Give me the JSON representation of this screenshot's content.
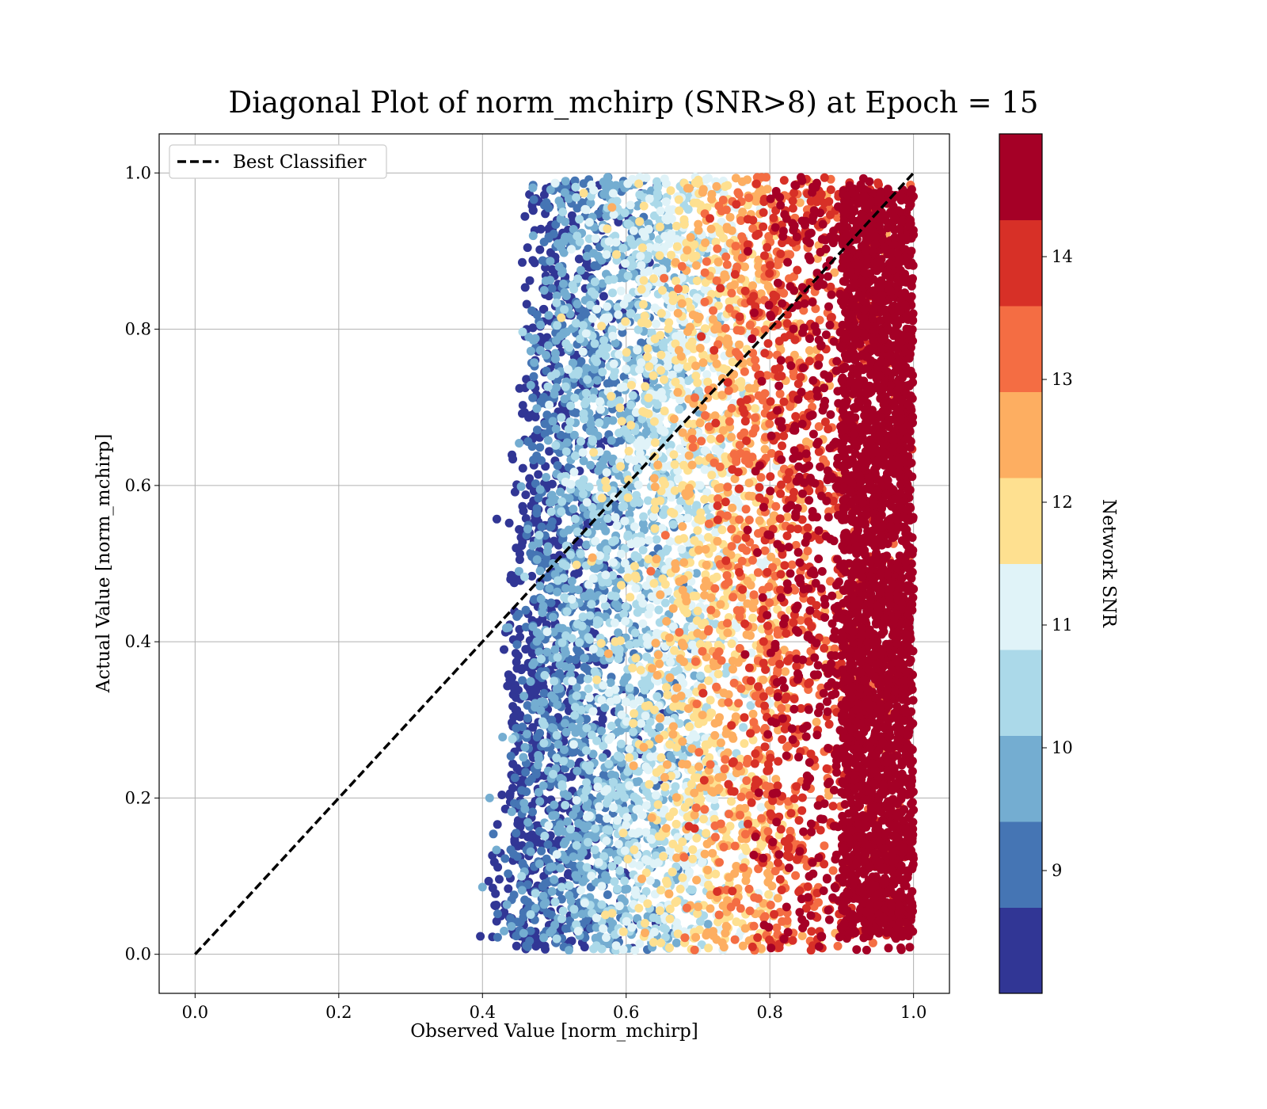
{
  "chart_data": {
    "type": "scatter",
    "title": "Diagonal Plot of norm_mchirp (SNR>8) at Epoch = 15",
    "xlabel": "Observed Value [norm_mchirp]",
    "ylabel": "Actual Value [norm_mchirp]",
    "xlim": [
      -0.05,
      1.05
    ],
    "ylim": [
      -0.05,
      1.05
    ],
    "xticks": [
      "0.0",
      "0.2",
      "0.4",
      "0.6",
      "0.8",
      "1.0"
    ],
    "yticks": [
      "0.0",
      "0.2",
      "0.4",
      "0.6",
      "0.8",
      "1.0"
    ],
    "grid": true,
    "legend": {
      "placement": "upper-left",
      "entries": [
        "Best Classifier"
      ]
    },
    "reference_line": {
      "name": "Best Classifier",
      "style": "dashed",
      "color": "#000000",
      "points": [
        [
          0,
          0
        ],
        [
          1,
          1
        ]
      ]
    },
    "colorbar": {
      "label": "Network SNR",
      "range": [
        8,
        15
      ],
      "tick_values": [
        9,
        10,
        11,
        12,
        13,
        14
      ],
      "tick_labels": [
        "9",
        "10",
        "11",
        "12",
        "13",
        "14"
      ],
      "bands": [
        {
          "from": 8.0,
          "to": 8.7,
          "color": "#313695"
        },
        {
          "from": 8.7,
          "to": 9.4,
          "color": "#4575b4"
        },
        {
          "from": 9.4,
          "to": 10.1,
          "color": "#74add1"
        },
        {
          "from": 10.1,
          "to": 10.8,
          "color": "#abd9e9"
        },
        {
          "from": 10.8,
          "to": 11.5,
          "color": "#e0f3f8"
        },
        {
          "from": 11.5,
          "to": 12.2,
          "color": "#fee090"
        },
        {
          "from": 12.2,
          "to": 12.9,
          "color": "#fdae61"
        },
        {
          "from": 12.9,
          "to": 13.6,
          "color": "#f46d43"
        },
        {
          "from": 13.6,
          "to": 14.3,
          "color": "#d73027"
        },
        {
          "from": 14.3,
          "to": 15.0,
          "color": "#a50026"
        }
      ]
    },
    "point_distribution": {
      "x_range": [
        0.4,
        1.0
      ],
      "y_range": [
        0.0,
        1.0
      ],
      "snr_by_x": [
        {
          "x": 0.45,
          "dominant_snr": 8.3
        },
        {
          "x": 0.55,
          "dominant_snr": 9.5
        },
        {
          "x": 0.65,
          "dominant_snr": 10.7
        },
        {
          "x": 0.75,
          "dominant_snr": 12.3
        },
        {
          "x": 0.85,
          "dominant_snr": 14.0
        },
        {
          "x": 0.95,
          "dominant_snr": 14.8
        }
      ]
    }
  }
}
